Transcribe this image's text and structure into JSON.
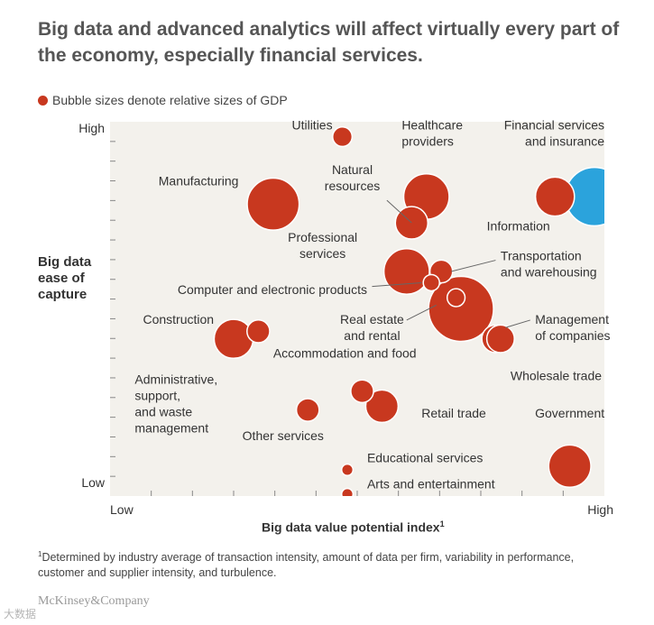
{
  "title": "Big data and advanced analytics will affect virtually every part of the economy, especially financial services.",
  "legend": "Bubble sizes denote relative sizes of GDP",
  "ylabel": "Big data ease of capture",
  "xlabel": "Big data value potential index",
  "footnote_mark": "1",
  "footnote": "Determined by industry average of transaction intensity, amount of data per firm, variability in performance, customer and supplier intensity, and turbulence.",
  "logo": "McKinsey&Company",
  "watermark": "大数据",
  "colors": {
    "bubble": "#c8381f",
    "highlight": "#2ba3dc",
    "plot_bg": "#f3f1ec",
    "tick": "#888888",
    "leader": "#666666"
  },
  "chart_data": {
    "type": "scatter",
    "subtype": "bubble",
    "xlim": [
      0,
      10
    ],
    "ylim": [
      0,
      10
    ],
    "x_ticks": 12,
    "y_ticks": 19,
    "x_axis": {
      "low": "Low",
      "high": "High"
    },
    "y_axis": {
      "low": "Low",
      "high": "High"
    },
    "points": [
      {
        "name": "Utilities",
        "label_lines": [
          "Utilities"
        ],
        "x": 4.7,
        "y": 9.6,
        "size": 0.6,
        "anchor": "end",
        "lx": 4.5,
        "ly": 9.8
      },
      {
        "name": "Healthcare providers",
        "label_lines": [
          "Healthcare",
          "providers"
        ],
        "x": 6.4,
        "y": 8.0,
        "size": 1.4,
        "anchor": "start",
        "lx": 5.9,
        "ly": 9.8
      },
      {
        "name": "Natural resources",
        "label_lines": [
          "Natural",
          "resources"
        ],
        "x": 6.1,
        "y": 7.3,
        "size": 1.0,
        "anchor": "middle",
        "lx": 4.9,
        "ly": 8.6,
        "leader": [
          [
            5.6,
            7.9
          ],
          [
            6.1,
            7.3
          ]
        ]
      },
      {
        "name": "Manufacturing",
        "label_lines": [
          "Manufacturing"
        ],
        "x": 3.3,
        "y": 7.8,
        "size": 1.6,
        "anchor": "end",
        "lx": 2.6,
        "ly": 8.3
      },
      {
        "name": "Information",
        "label_lines": [
          "Information"
        ],
        "x": 9.0,
        "y": 8.0,
        "size": 1.2,
        "anchor": "end",
        "lx": 8.9,
        "ly": 7.1
      },
      {
        "name": "Financial services and insurance",
        "label_lines": [
          "Financial services",
          "and insurance"
        ],
        "x": 9.8,
        "y": 8.0,
        "size": 1.8,
        "highlight": true,
        "anchor": "end",
        "lx": 10.0,
        "ly": 9.8
      },
      {
        "name": "Professional services",
        "label_lines": [
          "Professional",
          "services"
        ],
        "x": 6.0,
        "y": 6.0,
        "size": 1.4,
        "anchor": "middle",
        "lx": 4.3,
        "ly": 6.8
      },
      {
        "name": "Transportation and warehousing",
        "label_lines": [
          "Transportation",
          "and warehousing"
        ],
        "x": 6.7,
        "y": 6.0,
        "size": 0.7,
        "anchor": "start",
        "lx": 7.9,
        "ly": 6.3,
        "leader": [
          [
            7.8,
            6.3
          ],
          [
            6.9,
            6.0
          ]
        ]
      },
      {
        "name": "Computer and electronic products",
        "label_lines": [
          "Computer and electronic products"
        ],
        "x": 6.5,
        "y": 5.7,
        "size": 0.5,
        "anchor": "end",
        "lx": 5.2,
        "ly": 5.4,
        "leader": [
          [
            5.3,
            5.6
          ],
          [
            6.3,
            5.7
          ]
        ]
      },
      {
        "name": "Big bubble",
        "label_lines": [],
        "x": 7.1,
        "y": 5.0,
        "size": 2.0,
        "anchor": "middle",
        "lx": 0,
        "ly": 0
      },
      {
        "name": "Real estate and rental",
        "label_lines": [
          "Real estate",
          "and rental"
        ],
        "x": 7.0,
        "y": 5.3,
        "size": 0.55,
        "anchor": "middle",
        "lx": 5.3,
        "ly": 4.6,
        "leader": [
          [
            6.0,
            4.7
          ],
          [
            6.6,
            5.1
          ]
        ]
      },
      {
        "name": "Management of companies",
        "label_lines": [
          "Management",
          "of companies"
        ],
        "x": 7.8,
        "y": 4.2,
        "size": 0.85,
        "anchor": "start",
        "lx": 8.6,
        "ly": 4.6,
        "leader": [
          [
            8.5,
            4.7
          ],
          [
            8.0,
            4.5
          ]
        ]
      },
      {
        "name": "Wholesale trade",
        "label_lines": [
          "Wholesale trade"
        ],
        "x": 7.9,
        "y": 4.2,
        "size": 0.85,
        "anchor": "start",
        "lx": 8.1,
        "ly": 3.1
      },
      {
        "name": "Construction",
        "label_lines": [
          "Construction"
        ],
        "x": 2.5,
        "y": 4.2,
        "size": 1.2,
        "anchor": "end",
        "lx": 2.1,
        "ly": 4.6
      },
      {
        "name": "Administrative, support, and waste management",
        "label_lines": [
          "Administrative,",
          "support,",
          "and waste",
          "management"
        ],
        "x": 3.0,
        "y": 4.4,
        "size": 0.7,
        "anchor": "start",
        "lx": 0.5,
        "ly": 3.0
      },
      {
        "name": "Accommodation and food",
        "label_lines": [
          "Accommodation and food"
        ],
        "x": 5.1,
        "y": 2.8,
        "size": 0.7,
        "anchor": "start",
        "lx": 3.3,
        "ly": 3.7
      },
      {
        "name": "Retail trade",
        "label_lines": [
          "Retail trade"
        ],
        "x": 5.5,
        "y": 2.4,
        "size": 1.0,
        "anchor": "start",
        "lx": 6.3,
        "ly": 2.1
      },
      {
        "name": "Other services",
        "label_lines": [
          "Other services"
        ],
        "x": 4.0,
        "y": 2.3,
        "size": 0.7,
        "anchor": "middle",
        "lx": 3.5,
        "ly": 1.5
      },
      {
        "name": "Educational services",
        "label_lines": [
          "Educational services"
        ],
        "x": 4.8,
        "y": 0.7,
        "size": 0.35,
        "anchor": "start",
        "lx": 5.2,
        "ly": 0.9
      },
      {
        "name": "Arts and entertainment",
        "label_lines": [
          "Arts and entertainment"
        ],
        "x": 4.8,
        "y": 0.05,
        "size": 0.35,
        "anchor": "start",
        "lx": 5.2,
        "ly": 0.2
      },
      {
        "name": "Government",
        "label_lines": [
          "Government"
        ],
        "x": 9.3,
        "y": 0.8,
        "size": 1.3,
        "anchor": "middle",
        "lx": 9.3,
        "ly": 2.1
      }
    ]
  }
}
